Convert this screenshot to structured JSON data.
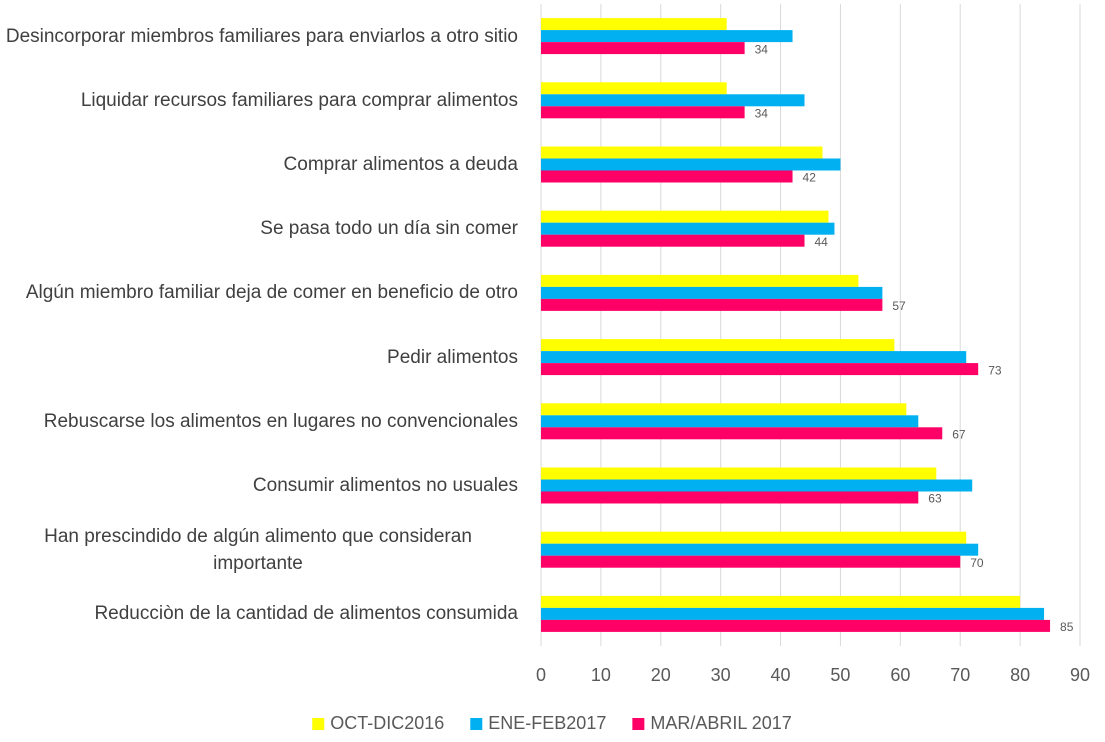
{
  "chart_data": {
    "type": "hbar",
    "categories": [
      "Desincorporar miembros familiares para enviarlos a otro sitio",
      "Liquidar recursos familiares para comprar alimentos",
      "Comprar alimentos a deuda",
      "Se pasa todo un día sin comer",
      "Algún miembro familiar deja de comer en beneficio de otro",
      "Pedir alimentos",
      "Rebuscarse los alimentos en lugares no convencionales",
      "Consumir alimentos no usuales",
      "Han prescindido de algún alimento que consideran importante",
      "Reducciòn de la cantidad de alimentos consumida"
    ],
    "series": [
      {
        "name": "OCT-DIC2016",
        "color": "#ffff00",
        "values": [
          31,
          31,
          47,
          48,
          53,
          59,
          61,
          66,
          71,
          80
        ],
        "data_labels": false
      },
      {
        "name": "ENE-FEB2017",
        "color": "#00b0f0",
        "values": [
          42,
          44,
          50,
          49,
          57,
          71,
          63,
          72,
          73,
          84
        ],
        "data_labels": false
      },
      {
        "name": "MAR/ABRIL 2017",
        "color": "#ff0066",
        "values": [
          34,
          34,
          42,
          44,
          57,
          73,
          67,
          63,
          70,
          85
        ],
        "data_labels": true
      }
    ],
    "xlim": [
      0,
      90
    ],
    "xticks": [
      0,
      10,
      20,
      30,
      40,
      50,
      60,
      70,
      80,
      90
    ],
    "grid": true,
    "legend": "bottom"
  }
}
